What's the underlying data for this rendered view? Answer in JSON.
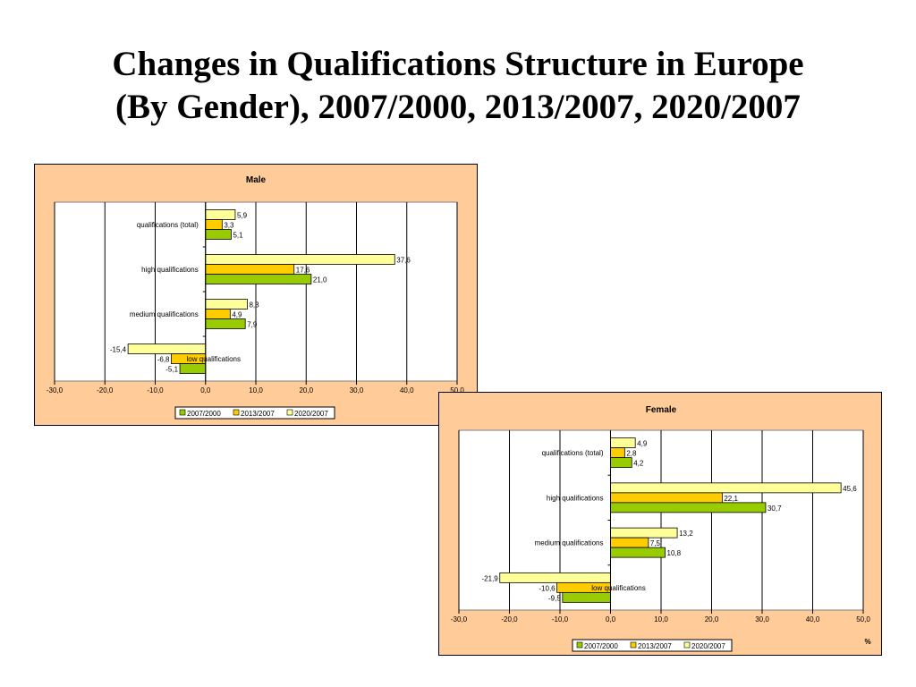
{
  "title": {
    "line1": "Changes in Qualifications Structure in Europe",
    "line2": "(By Gender), 2007/2000, 2013/2007, 2020/2007"
  },
  "colors": {
    "background": "#ffffff",
    "panel": "#ffcc99",
    "plot": "#ffffff",
    "2007/2000": "#99cc00",
    "2013/2007": "#ffcc00",
    "2020/2007": "#ffff99"
  },
  "chart_data": [
    {
      "type": "bar",
      "orientation": "horizontal",
      "title": "Male",
      "categories": [
        "qualifications (total)",
        "high qualifications",
        "medium qualifications",
        "low qualifications"
      ],
      "series": [
        {
          "name": "2020/2007",
          "values": [
            5.9,
            37.6,
            8.3,
            -15.4
          ],
          "labels": [
            "5,9",
            "37,6",
            "8,3",
            "-15,4"
          ]
        },
        {
          "name": "2013/2007",
          "values": [
            3.3,
            17.6,
            4.9,
            -6.8
          ],
          "labels": [
            "3,3",
            "17,6",
            "4,9",
            "-6,8"
          ]
        },
        {
          "name": "2007/2000",
          "values": [
            5.1,
            21.0,
            7.9,
            -5.1
          ],
          "labels": [
            "5,1",
            "21,0",
            "7,9",
            "-5,1"
          ]
        }
      ],
      "xlim": [
        -30,
        50
      ],
      "xticks": [
        "-30,0",
        "-20,0",
        "-10,0",
        "0,0",
        "10,0",
        "20,0",
        "30,0",
        "40,0",
        "50,0"
      ],
      "xlabel": "",
      "grid": "vertical",
      "legend": {
        "position": "bottom",
        "entries": [
          "2007/2000",
          "2013/2007",
          "2020/2007"
        ]
      }
    },
    {
      "type": "bar",
      "orientation": "horizontal",
      "title": "Female",
      "categories": [
        "qualifications (total)",
        "high qualifications",
        "medium qualifications",
        "low qualifications"
      ],
      "series": [
        {
          "name": "2020/2007",
          "values": [
            4.9,
            45.6,
            13.2,
            -21.9
          ],
          "labels": [
            "4,9",
            "45,6",
            "13,2",
            "-21,9"
          ]
        },
        {
          "name": "2013/2007",
          "values": [
            2.8,
            22.1,
            7.5,
            -10.6
          ],
          "labels": [
            "2,8",
            "22,1",
            "7,5",
            "-10,6"
          ]
        },
        {
          "name": "2007/2000",
          "values": [
            4.2,
            30.7,
            10.8,
            -9.5
          ],
          "labels": [
            "4,2",
            "30,7",
            "10,8",
            "-9,5"
          ]
        }
      ],
      "xlim": [
        -30,
        50
      ],
      "xticks": [
        "-30,0",
        "-20,0",
        "-10,0",
        "0,0",
        "10,0",
        "20,0",
        "30,0",
        "40,0",
        "50,0"
      ],
      "xlabel": "%",
      "grid": "vertical",
      "legend": {
        "position": "bottom",
        "entries": [
          "2007/2000",
          "2013/2007",
          "2020/2007"
        ]
      }
    }
  ]
}
